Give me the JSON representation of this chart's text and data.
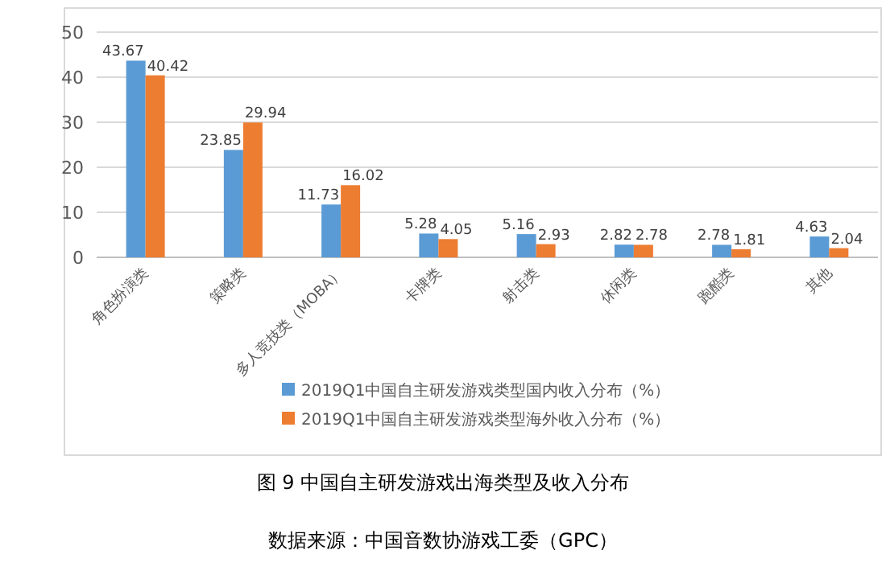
{
  "chart_data": {
    "type": "bar",
    "title": "图 9  中国自主研发游戏出海类型及收入分布",
    "categories": [
      "角色扮演类",
      "策略类",
      "多人竞技类（MOBA）",
      "卡牌类",
      "射击类",
      "休闲类",
      "跑酷类",
      "其他"
    ],
    "series": [
      {
        "name": "2019Q1中国自主研发游戏类型国内收入分布（%）",
        "color": "#5b9bd5",
        "values": [
          43.67,
          23.85,
          11.73,
          5.28,
          5.16,
          2.82,
          2.78,
          4.63
        ]
      },
      {
        "name": "2019Q1中国自主研发游戏类型海外收入分布（%）",
        "color": "#ed7d31",
        "values": [
          40.42,
          29.94,
          16.02,
          4.05,
          2.93,
          2.78,
          1.81,
          2.04
        ]
      }
    ],
    "ylim": [
      0,
      50
    ],
    "yticks": [
      0,
      10,
      20,
      30,
      40,
      50
    ],
    "grid": "y",
    "legend": "bottom",
    "data_labels": true,
    "annotations": [
      "数据来源：中国音数协游戏工委（GPC）"
    ]
  }
}
